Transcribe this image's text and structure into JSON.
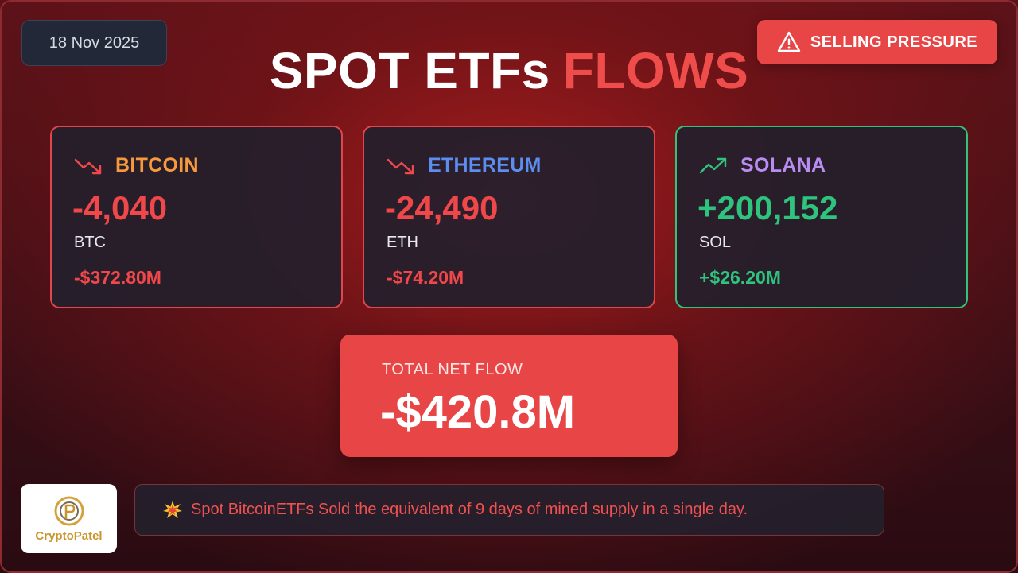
{
  "date": "18 Nov 2025",
  "alert": {
    "label": "SELLING PRESSURE",
    "icon": "warning-icon"
  },
  "title": {
    "part1": "SPOT ETFs",
    "part2": "FLOWS"
  },
  "cards": [
    {
      "name": "BITCOIN",
      "name_color": "#f79a3e",
      "trend": "down",
      "trend_icon": "trend-down-icon",
      "amount": "-4,040",
      "unit": "BTC",
      "usd": "-$372.80M",
      "tone": "negative"
    },
    {
      "name": "ETHEREUM",
      "name_color": "#5b8ef0",
      "trend": "down",
      "trend_icon": "trend-down-icon",
      "amount": "-24,490",
      "unit": "ETH",
      "usd": "-$74.20M",
      "tone": "negative"
    },
    {
      "name": "SOLANA",
      "name_color": "#b98cf2",
      "trend": "up",
      "trend_icon": "trend-up-icon",
      "amount": "+200,152",
      "unit": "SOL",
      "usd": "+$26.20M",
      "tone": "positive"
    }
  ],
  "total": {
    "label": "TOTAL NET FLOW",
    "value": "-$420.8M"
  },
  "footer": {
    "logo_text": "CryptoPatel",
    "note_icon": "collision-icon",
    "note": "Spot BitcoinETFs Sold the equivalent of 9 days of mined supply in a single day."
  },
  "colors": {
    "negative": "#f0484a",
    "positive": "#2fc47d",
    "alert_bg": "#e84646"
  }
}
